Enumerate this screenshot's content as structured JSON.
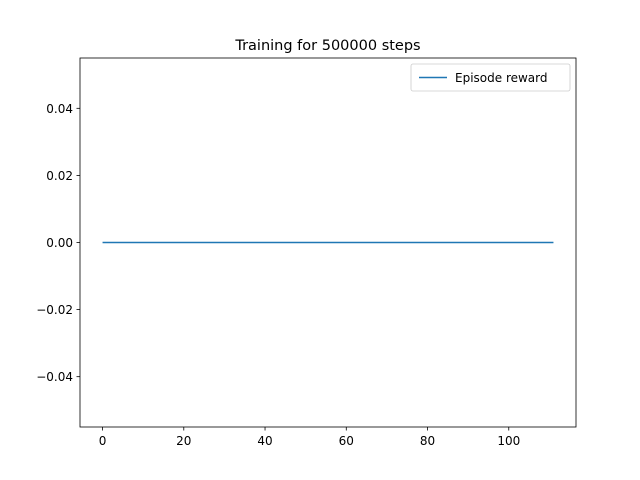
{
  "chart_data": {
    "type": "line",
    "title": "Training for 500000 steps",
    "xlabel": "",
    "ylabel": "",
    "xlim": [
      -5.55,
      116.55
    ],
    "ylim": [
      -0.055,
      0.055
    ],
    "x_ticks": [
      0,
      20,
      40,
      60,
      80,
      100
    ],
    "x_tick_labels": [
      "0",
      "20",
      "40",
      "60",
      "80",
      "100"
    ],
    "y_ticks": [
      -0.04,
      -0.02,
      0.0,
      0.02,
      0.04
    ],
    "y_tick_labels": [
      "−0.04",
      "−0.02",
      "0.00",
      "0.02",
      "0.04"
    ],
    "grid": false,
    "legend": {
      "placement": "upper-right",
      "entries": [
        "Episode reward"
      ]
    },
    "series": [
      {
        "name": "Episode reward",
        "color": "#1f77b4",
        "x": [
          0,
          111
        ],
        "y": [
          0,
          0
        ]
      }
    ]
  }
}
